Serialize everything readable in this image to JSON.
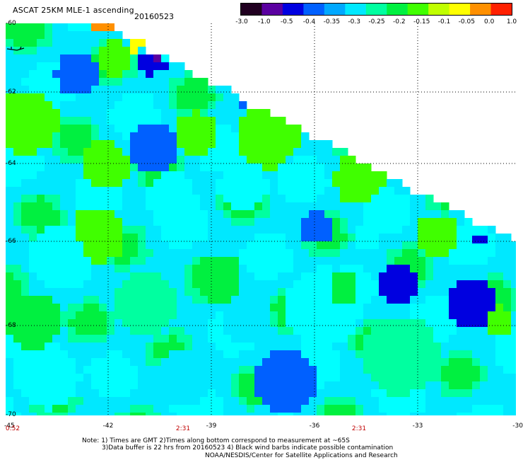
{
  "header": {
    "title": "ASCAT 25KM MLE-1 ascending",
    "date": "20160523"
  },
  "colorbar": {
    "labels": [
      "-3.0",
      "-1.0",
      "-0.5",
      "-0.4",
      "-0.35",
      "-0.3",
      "-0.25",
      "-0.2",
      "-0.15",
      "-0.1",
      "-0.05",
      "0.0",
      "1.0"
    ],
    "colors": [
      "#200020",
      "#5a00a0",
      "#0000e0",
      "#0060ff",
      "#00a8ff",
      "#00e8ff",
      "#00ffa0",
      "#00f040",
      "#40ff00",
      "#c0ff00",
      "#ffff00",
      "#ff9000",
      "#ff2000"
    ]
  },
  "map": {
    "lat_labels": [
      "-60",
      "-62",
      "-64",
      "-66",
      "-68",
      "-70"
    ],
    "lon_labels": [
      "-45",
      "-42",
      "-39",
      "-36",
      "-33",
      "-30"
    ],
    "time_labels": [
      "0:52",
      "2:31",
      "2:31"
    ],
    "grid": "dotted",
    "palette": {
      "cyan": "#00ffff",
      "aqua": "#00e8ff",
      "mint": "#00ffa0",
      "green": "#00f040",
      "lime": "#40ff00",
      "blue": "#0060ff",
      "deepblue": "#0000e0",
      "yellow": "#ffff00",
      "orange": "#ff9000",
      "violet": "#5a00a0"
    }
  },
  "notes": {
    "line1": "Note: 1) Times are GMT 2)Times along bottom correspond to measurement at ~65S",
    "line2": "3)Data buffer is 22 hrs from 20160523 4) Black wind barbs indicate possible contamination",
    "line3": "NOAA/NESDIS/Center for Satellite Applications and Research"
  }
}
